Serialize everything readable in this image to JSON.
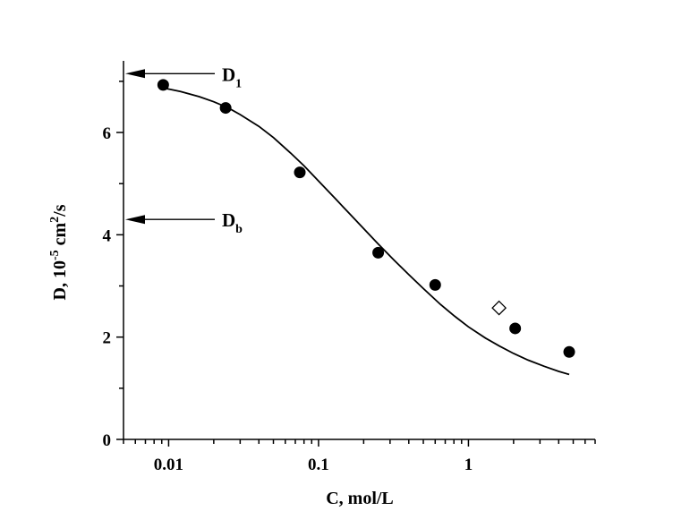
{
  "chart_data": {
    "type": "scatter",
    "title": "",
    "xlabel": "C, mol/L",
    "ylabel": {
      "prefix": "D, 10",
      "exp1": "-5",
      "mid": " cm",
      "exp2": "2",
      "suffix": "/s"
    },
    "xscale": "log",
    "xlim": [
      0.005,
      7
    ],
    "ylim": [
      0,
      7.4
    ],
    "xticks": [
      {
        "value": 0.01,
        "label": "0.01"
      },
      {
        "value": 0.1,
        "label": "0.1"
      },
      {
        "value": 1,
        "label": "1"
      }
    ],
    "yticks": [
      {
        "value": 0,
        "label": "0"
      },
      {
        "value": 2,
        "label": "2"
      },
      {
        "value": 4,
        "label": "4"
      },
      {
        "value": 6,
        "label": "6"
      }
    ],
    "grid": false,
    "series": [
      {
        "marker": "filled-circle",
        "color": "#000000",
        "x": [
          0.0092,
          0.024,
          0.075,
          0.25,
          0.6,
          2.05,
          4.7
        ],
        "y": [
          6.93,
          6.48,
          5.22,
          3.65,
          3.02,
          2.17,
          1.71
        ]
      },
      {
        "marker": "open-diamond",
        "color": "#000000",
        "x": [
          1.6
        ],
        "y": [
          2.57
        ]
      }
    ],
    "fit_curve": {
      "x": [
        0.0092,
        0.012,
        0.016,
        0.02,
        0.025,
        0.03,
        0.04,
        0.05,
        0.065,
        0.08,
        0.1,
        0.13,
        0.16,
        0.2,
        0.25,
        0.32,
        0.4,
        0.5,
        0.65,
        0.8,
        1.0,
        1.3,
        1.6,
        2.0,
        2.5,
        3.2,
        4.0,
        4.7
      ],
      "y": [
        6.87,
        6.8,
        6.7,
        6.6,
        6.48,
        6.35,
        6.12,
        5.9,
        5.6,
        5.35,
        5.05,
        4.7,
        4.42,
        4.12,
        3.82,
        3.5,
        3.22,
        2.95,
        2.64,
        2.42,
        2.2,
        1.98,
        1.83,
        1.68,
        1.55,
        1.43,
        1.33,
        1.27
      ]
    },
    "annotations": [
      {
        "label_main": "D",
        "label_sub": "1",
        "y": 7.15
      },
      {
        "label_main": "D",
        "label_sub": "b",
        "y": 4.3
      }
    ]
  }
}
